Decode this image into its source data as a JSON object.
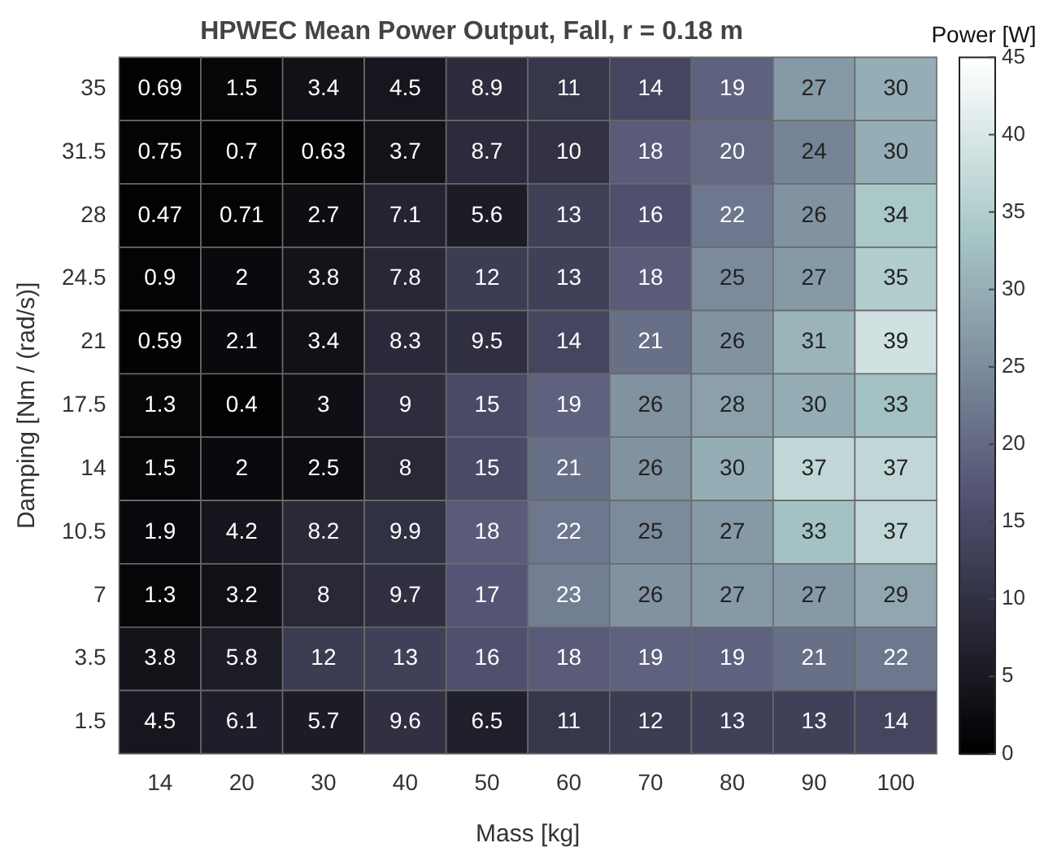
{
  "chart_data": {
    "type": "heatmap",
    "title": "HPWEC Mean Power Output, Fall, r = 0.18 m",
    "xlabel": "Mass [kg]",
    "ylabel": "Damping [Nm / (rad/s)]",
    "clabel": "Power [W]",
    "categories": [
      "14",
      "20",
      "30",
      "40",
      "50",
      "60",
      "70",
      "80",
      "90",
      "100"
    ],
    "y_categories": [
      "35",
      "31.5",
      "28",
      "24.5",
      "21",
      "17.5",
      "14",
      "10.5",
      "7",
      "3.5",
      "1.5"
    ],
    "cells": [
      [
        0.69,
        1.5,
        3.4,
        4.5,
        8.9,
        11,
        14,
        19,
        27,
        30
      ],
      [
        0.75,
        0.7,
        0.63,
        3.7,
        8.7,
        10,
        18,
        20,
        24,
        30
      ],
      [
        0.47,
        0.71,
        2.7,
        7.1,
        5.6,
        13,
        16,
        22,
        26,
        34
      ],
      [
        0.9,
        2,
        3.8,
        7.8,
        12,
        13,
        18,
        25,
        27,
        35
      ],
      [
        0.59,
        2.1,
        3.4,
        8.3,
        9.5,
        14,
        21,
        26,
        31,
        39
      ],
      [
        1.3,
        0.4,
        3,
        9,
        15,
        19,
        26,
        28,
        30,
        33
      ],
      [
        1.5,
        2,
        2.5,
        8,
        15,
        21,
        26,
        30,
        37,
        37
      ],
      [
        1.9,
        4.2,
        8.2,
        9.9,
        18,
        22,
        25,
        27,
        33,
        37
      ],
      [
        1.3,
        3.2,
        8,
        9.7,
        17,
        23,
        26,
        27,
        27,
        29
      ],
      [
        3.8,
        5.8,
        12,
        13,
        16,
        18,
        19,
        19,
        21,
        22
      ],
      [
        4.5,
        6.1,
        5.7,
        9.6,
        6.5,
        11,
        12,
        13,
        13,
        14
      ]
    ],
    "data_labels": true,
    "clim": [
      0,
      45
    ],
    "cticks": [
      0,
      5,
      10,
      15,
      20,
      25,
      30,
      35,
      40,
      45
    ]
  }
}
